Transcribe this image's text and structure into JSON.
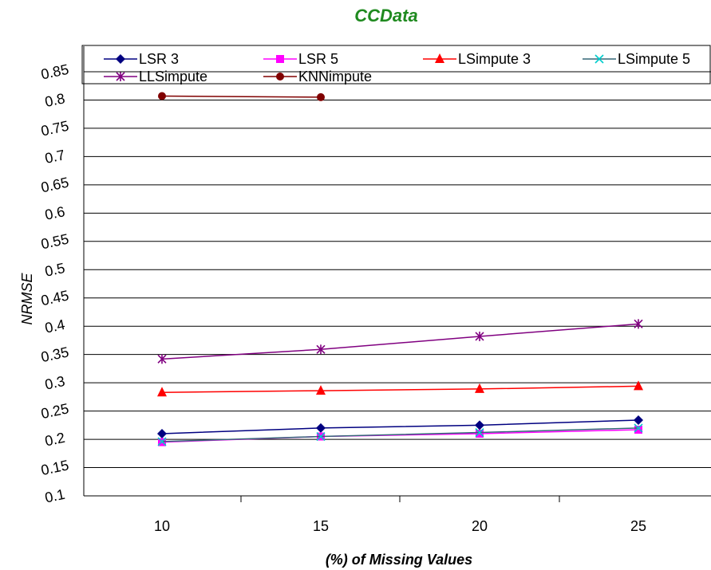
{
  "chart_data": {
    "type": "line",
    "title": "CCData",
    "xlabel": "(%) of Missing Values",
    "ylabel": "NRMSE",
    "categories": [
      "10",
      "15",
      "20",
      "25"
    ],
    "y_ticks": [
      "0.1",
      "0.15",
      "0.2",
      "0.25",
      "0.3",
      "0.35",
      "0.4",
      "0.45",
      "0.5",
      "0.55",
      "0.6",
      "0.65",
      "0.7",
      "0.75",
      "0.8",
      "0.85"
    ],
    "ylim": [
      0.1,
      0.85
    ],
    "grid": "horizontal",
    "legend_position": "top",
    "series": [
      {
        "name": "LSR 3",
        "values": [
          0.21,
          0.22,
          0.225,
          0.234
        ],
        "color": "#000080",
        "marker": "diamond"
      },
      {
        "name": "LSR 5",
        "values": [
          0.195,
          0.205,
          0.21,
          0.217
        ],
        "color": "#ff00ff",
        "marker": "square"
      },
      {
        "name": "LSimpute 3",
        "values": [
          0.283,
          0.286,
          0.289,
          0.294
        ],
        "color": "#ff0000",
        "marker": "triangle"
      },
      {
        "name": "LSimpute 5",
        "values": [
          0.196,
          0.205,
          0.212,
          0.22
        ],
        "color": "#00cccc",
        "marker": "x",
        "line_color": "#336677"
      },
      {
        "name": "LLSimpute",
        "values": [
          0.342,
          0.359,
          0.382,
          0.404
        ],
        "color": "#800080",
        "marker": "star"
      },
      {
        "name": "KNNimpute",
        "values": [
          0.807,
          0.805,
          null,
          null
        ],
        "color": "#800000",
        "marker": "circle"
      }
    ]
  }
}
